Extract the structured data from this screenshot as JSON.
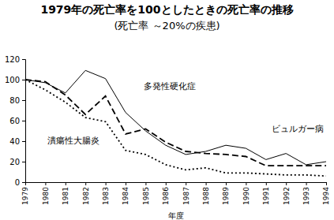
{
  "chart_data": {
    "type": "line",
    "title": "1979年の死亡率を100としたときの死亡率の推移",
    "subtitle": "(死亡率 ～20%の疾患)",
    "x_label": "年度",
    "x": [
      1979,
      1980,
      1981,
      1982,
      1983,
      1984,
      1985,
      1986,
      1987,
      1988,
      1989,
      1990,
      1991,
      1992,
      1993,
      1994
    ],
    "xlim": [
      1979,
      1994
    ],
    "xticks": [
      1979,
      1980,
      1981,
      1982,
      1983,
      1984,
      1985,
      1986,
      1987,
      1988,
      1989,
      1990,
      1991,
      1992,
      1993,
      1994
    ],
    "ylim": [
      0,
      120
    ],
    "yticks": [
      0,
      20,
      40,
      60,
      80,
      100,
      120
    ],
    "grid": false,
    "series": [
      {
        "name": "多発性硬化症",
        "color": "#000000",
        "line_style": "dashed",
        "values": [
          100,
          98,
          85,
          66,
          84,
          47,
          52,
          39,
          30,
          28,
          27,
          25,
          16,
          16,
          16,
          16
        ]
      },
      {
        "name": "ビュルガー病",
        "color": "#000000",
        "line_style": "solid",
        "values": [
          100,
          97,
          87,
          109,
          101,
          68,
          50,
          36,
          27,
          30,
          36,
          33,
          22,
          28,
          17,
          20
        ]
      },
      {
        "name": "潰瘍性大腸炎",
        "color": "#000000",
        "line_style": "dotted",
        "values": [
          100,
          90,
          78,
          63,
          59,
          31,
          27,
          17,
          12,
          14,
          9,
          9,
          8,
          7,
          7,
          6
        ]
      }
    ]
  }
}
